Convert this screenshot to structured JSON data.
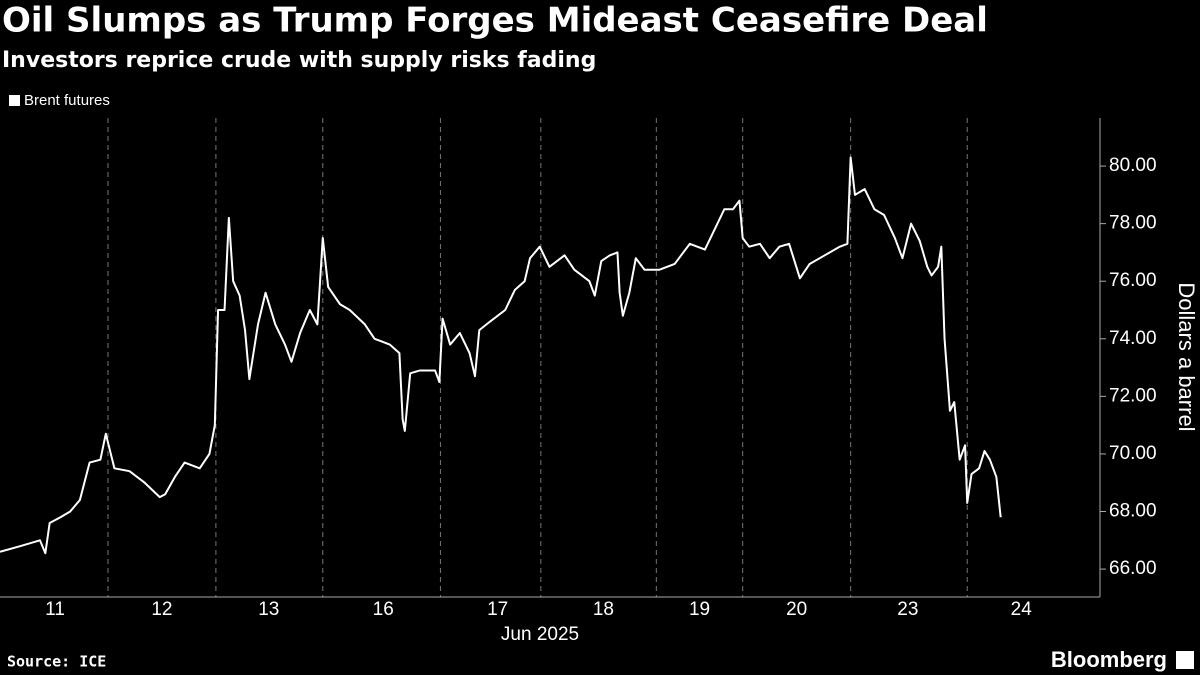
{
  "chart_data": {
    "type": "line",
    "title": "Oil Slumps as Trump Forges Mideast Ceasefire Deal",
    "subtitle": "Investors reprice crude with supply risks fading",
    "y_label": "Dollars a barrel",
    "x_label": "Jun 2025",
    "source": "Source: ICE",
    "brand": "Bloomberg",
    "y_axis_side": "right",
    "legend": "top-left",
    "xlim": [
      0,
      10.19
    ],
    "xticks": [
      {
        "value": 0.51,
        "label": "11"
      },
      {
        "value": 1.5,
        "label": "12"
      },
      {
        "value": 2.49,
        "label": "13"
      },
      {
        "value": 3.55,
        "label": "16"
      },
      {
        "value": 4.61,
        "label": "17"
      },
      {
        "value": 5.59,
        "label": "18"
      },
      {
        "value": 6.48,
        "label": "19"
      },
      {
        "value": 7.38,
        "label": "20"
      },
      {
        "value": 8.41,
        "label": "23"
      },
      {
        "value": 9.46,
        "label": "24"
      }
    ],
    "xgrid": [
      1,
      2,
      2.99,
      4.08,
      5.01,
      6.08,
      6.88,
      7.88,
      8.96
    ],
    "ylim": [
      65.03,
      81.67
    ],
    "yticks": [
      {
        "value": 66,
        "label": "66.00"
      },
      {
        "value": 68,
        "label": "68.00"
      },
      {
        "value": 70,
        "label": "70.00"
      },
      {
        "value": 72,
        "label": "72.00"
      },
      {
        "value": 74,
        "label": "74.00"
      },
      {
        "value": 76,
        "label": "76.00"
      },
      {
        "value": 78,
        "label": "78.00"
      },
      {
        "value": 80,
        "label": "80.00"
      }
    ],
    "x": [
      0,
      0.19,
      0.37,
      0.42,
      0.46,
      0.56,
      0.65,
      0.74,
      0.83,
      0.93,
      0.98,
      1.06,
      1.2,
      1.34,
      1.48,
      1.53,
      1.62,
      1.71,
      1.85,
      1.94,
      1.99,
      2.02,
      2.08,
      2.12,
      2.16,
      2.22,
      2.27,
      2.31,
      2.39,
      2.46,
      2.55,
      2.64,
      2.7,
      2.78,
      2.87,
      2.94,
      2.99,
      3.04,
      3.15,
      3.24,
      3.38,
      3.47,
      3.61,
      3.7,
      3.73,
      3.75,
      3.8,
      3.89,
      4.03,
      4.07,
      4.1,
      4.17,
      4.26,
      4.35,
      4.4,
      4.44,
      4.54,
      4.68,
      4.77,
      4.86,
      4.91,
      5,
      5.09,
      5.23,
      5.32,
      5.46,
      5.51,
      5.57,
      5.65,
      5.72,
      5.74,
      5.77,
      5.83,
      5.89,
      5.97,
      6.11,
      6.25,
      6.39,
      6.53,
      6.62,
      6.71,
      6.79,
      6.85,
      6.88,
      6.94,
      7.04,
      7.13,
      7.22,
      7.31,
      7.41,
      7.5,
      7.64,
      7.78,
      7.85,
      7.88,
      7.92,
      8.01,
      8.1,
      8.19,
      8.29,
      8.36,
      8.44,
      8.52,
      8.59,
      8.63,
      8.69,
      8.72,
      8.75,
      8.8,
      8.84,
      8.89,
      8.94,
      8.96,
      9,
      9.07,
      9.12,
      9.17,
      9.23,
      9.27
    ],
    "series": [
      {
        "name": "Brent futures",
        "color": "#ffffff",
        "values": [
          66.6,
          66.8,
          67.0,
          66.55,
          67.6,
          67.8,
          68.0,
          68.4,
          69.7,
          69.8,
          70.7,
          69.5,
          69.4,
          69.0,
          68.5,
          68.6,
          69.2,
          69.7,
          69.5,
          70.0,
          71.0,
          75.0,
          75.0,
          78.2,
          76.0,
          75.5,
          74.3,
          72.6,
          74.5,
          75.6,
          74.5,
          73.8,
          73.2,
          74.2,
          75.0,
          74.5,
          77.5,
          75.8,
          75.2,
          75.0,
          74.5,
          74.0,
          73.8,
          73.5,
          71.2,
          70.8,
          72.8,
          72.9,
          72.9,
          72.5,
          74.7,
          73.8,
          74.2,
          73.5,
          72.7,
          74.3,
          74.6,
          75.0,
          75.7,
          76.0,
          76.8,
          77.2,
          76.5,
          76.9,
          76.4,
          76.0,
          75.5,
          76.7,
          76.9,
          77.0,
          75.6,
          74.8,
          75.6,
          76.8,
          76.4,
          76.4,
          76.6,
          77.3,
          77.1,
          77.8,
          78.5,
          78.5,
          78.8,
          77.5,
          77.2,
          77.3,
          76.8,
          77.2,
          77.3,
          76.1,
          76.6,
          76.9,
          77.2,
          77.3,
          80.3,
          79.0,
          79.2,
          78.5,
          78.3,
          77.5,
          76.8,
          78.0,
          77.4,
          76.5,
          76.2,
          76.5,
          77.2,
          74.0,
          71.5,
          71.8,
          69.8,
          70.3,
          68.3,
          69.3,
          69.5,
          70.1,
          69.8,
          69.2,
          67.8
        ]
      }
    ]
  }
}
